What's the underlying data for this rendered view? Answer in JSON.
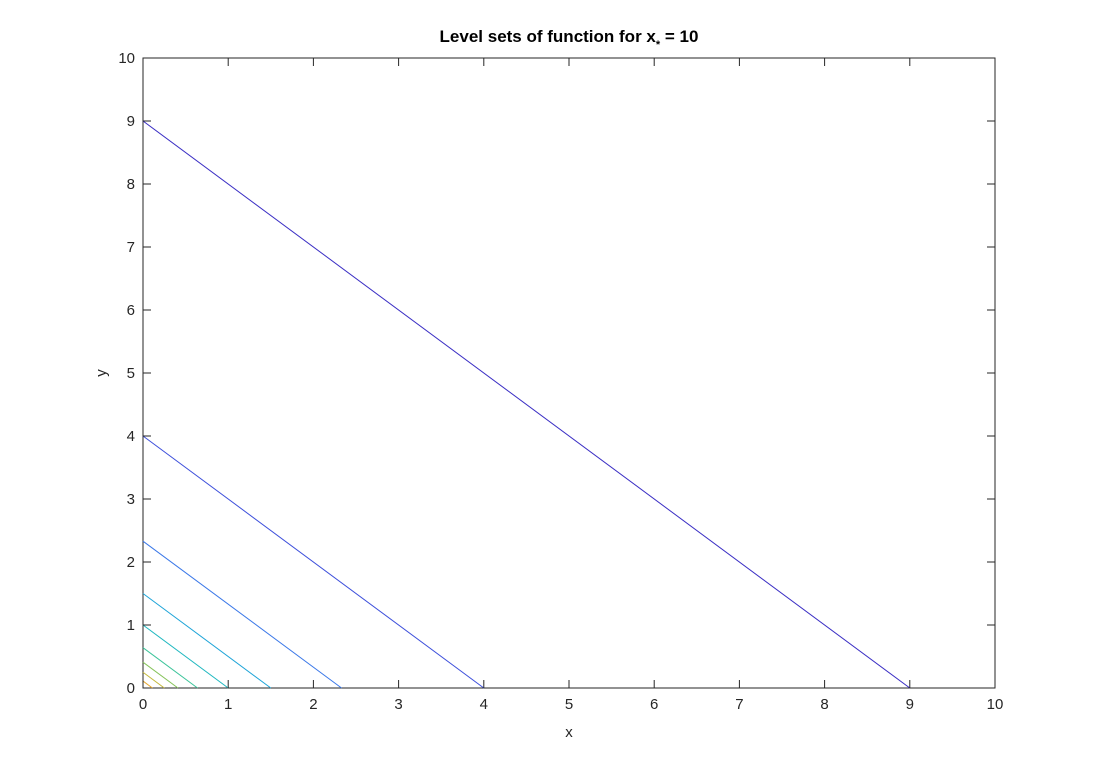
{
  "chart_data": {
    "type": "line",
    "title": "Level sets of function for x",
    "title_subscript": "*",
    "title_suffix": " = 10",
    "xlabel": "x",
    "ylabel": "y",
    "xlim": [
      0,
      10
    ],
    "ylim": [
      0,
      10
    ],
    "x_ticks": [
      "0",
      "1",
      "2",
      "3",
      "4",
      "5",
      "6",
      "7",
      "8",
      "9",
      "10"
    ],
    "y_ticks": [
      "0",
      "1",
      "2",
      "3",
      "4",
      "5",
      "6",
      "7",
      "8",
      "9",
      "10"
    ],
    "grid": false,
    "box": true,
    "series": [
      {
        "color": "#3a2ec4",
        "x": [
          0,
          9
        ],
        "y": [
          9,
          0
        ]
      },
      {
        "color": "#3d4fdb",
        "x": [
          0,
          4
        ],
        "y": [
          4,
          0
        ]
      },
      {
        "color": "#3b78e8",
        "x": [
          0,
          2.33
        ],
        "y": [
          2.33,
          0
        ]
      },
      {
        "color": "#1ea4d8",
        "x": [
          0,
          1.5
        ],
        "y": [
          1.5,
          0
        ]
      },
      {
        "color": "#1fb8c0",
        "x": [
          0,
          1.0
        ],
        "y": [
          1.0,
          0
        ]
      },
      {
        "color": "#3cc49a",
        "x": [
          0,
          0.64
        ],
        "y": [
          0.64,
          0
        ]
      },
      {
        "color": "#86c35a",
        "x": [
          0,
          0.41
        ],
        "y": [
          0.41,
          0
        ]
      },
      {
        "color": "#c3b83a",
        "x": [
          0,
          0.25
        ],
        "y": [
          0.25,
          0
        ]
      },
      {
        "color": "#e8a82e",
        "x": [
          0,
          0.11
        ],
        "y": [
          0.11,
          0
        ]
      }
    ]
  }
}
